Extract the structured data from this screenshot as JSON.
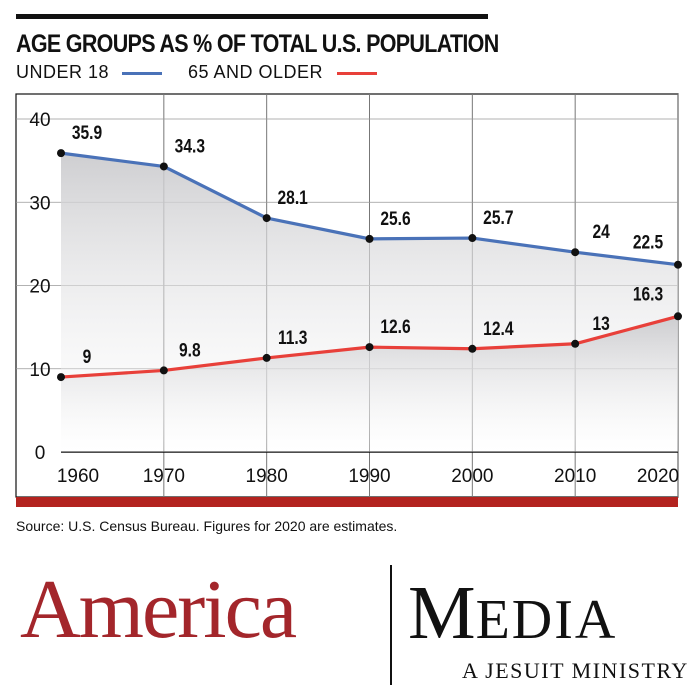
{
  "title": "AGE GROUPS AS % OF TOTAL U.S. POPULATION",
  "legend": [
    {
      "label": "UNDER 18",
      "color": "#4a72b8"
    },
    {
      "label": "65 AND OLDER",
      "color": "#e8403a"
    }
  ],
  "source": "Source: U.S. Census Bureau. Figures for 2020 are estimates.",
  "logo": {
    "left": "America",
    "right_initial": "M",
    "right_rest": "EDIA",
    "tagline": "A JESUIT MINISTRY",
    "colors": {
      "america": "#a3262b",
      "media": "#111111",
      "bottom_bar": "#b3231f"
    }
  },
  "chart_data": {
    "type": "line",
    "title": "AGE GROUPS AS % OF TOTAL U.S. POPULATION",
    "x": [
      "1960",
      "1970",
      "1980",
      "1990",
      "2000",
      "2010",
      "2020"
    ],
    "ylim": [
      0,
      40
    ],
    "yticks": [
      "0",
      "10",
      "20",
      "30",
      "40"
    ],
    "grid": true,
    "legend_position": "top-left",
    "series": [
      {
        "name": "UNDER 18",
        "color": "#4a72b8",
        "values": [
          35.9,
          34.3,
          28.1,
          25.6,
          25.7,
          24,
          22.5
        ],
        "labels": [
          "35.9",
          "34.3",
          "28.1",
          "25.6",
          "25.7",
          "24",
          "22.5"
        ]
      },
      {
        "name": "65 AND OLDER",
        "color": "#e8403a",
        "values": [
          9,
          9.8,
          11.3,
          12.6,
          12.4,
          13,
          16.3
        ],
        "labels": [
          "9",
          "9.8",
          "11.3",
          "12.6",
          "12.4",
          "13",
          "16.3"
        ]
      }
    ]
  }
}
